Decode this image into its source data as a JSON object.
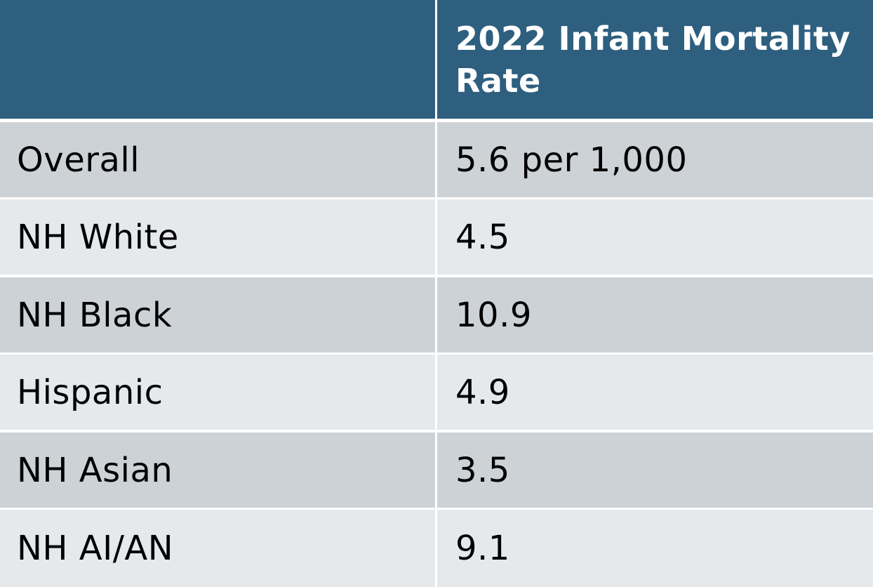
{
  "table": {
    "header": {
      "group_label": "",
      "value_label": "2022 Infant Mortality Rate"
    },
    "rows": [
      {
        "group": "Overall",
        "rate": "5.6 per 1,000"
      },
      {
        "group": "NH White",
        "rate": "4.5"
      },
      {
        "group": "NH Black",
        "rate": "10.9"
      },
      {
        "group": "Hispanic",
        "rate": "4.9"
      },
      {
        "group": "NH Asian",
        "rate": "3.5"
      },
      {
        "group": "NH AI/AN",
        "rate": "9.1"
      }
    ]
  },
  "colors": {
    "header_bg": "#2e5f7f",
    "row_dark": "#cdd2d7",
    "row_light": "#e6e9ec"
  }
}
